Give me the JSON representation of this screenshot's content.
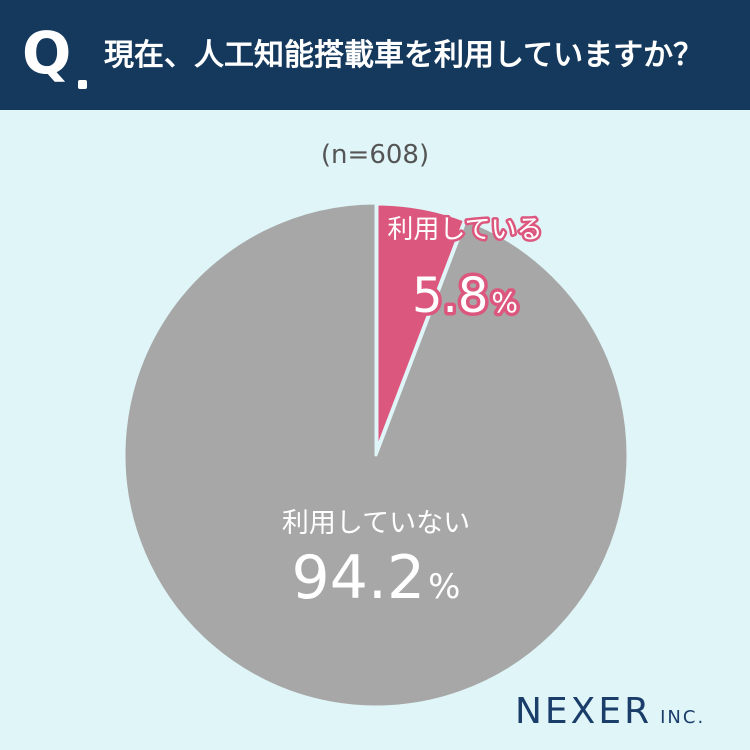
{
  "header": {
    "q_label": "Q",
    "question": "現在、人工知能搭載車を利用していますか？"
  },
  "sample_size": "(n=608)",
  "logo": {
    "main": "NEXER",
    "suffix": "INC."
  },
  "chart_data": {
    "type": "pie",
    "title": "現在、人工知能搭載車を利用していますか？",
    "subtitle": "(n=608)",
    "unit": "%",
    "start_angle_deg": 0,
    "slices": [
      {
        "label": "利用している",
        "value": 5.8,
        "value_text": "5.8",
        "color": "#dc577d",
        "text_color": "#ffffff",
        "outline_color": "#dc577d"
      },
      {
        "label": "利用していない",
        "value": 94.2,
        "value_text": "94.2",
        "color": "#a7a7a7",
        "text_color": "#ffffff",
        "outline_color": null
      }
    ]
  },
  "colors": {
    "background": "#dff5f8",
    "header_background": "#14395c",
    "header_text": "#ffffff",
    "logo": "#1a3d6a",
    "subtitle_text": "#555555",
    "separator": "#dff5f8"
  }
}
